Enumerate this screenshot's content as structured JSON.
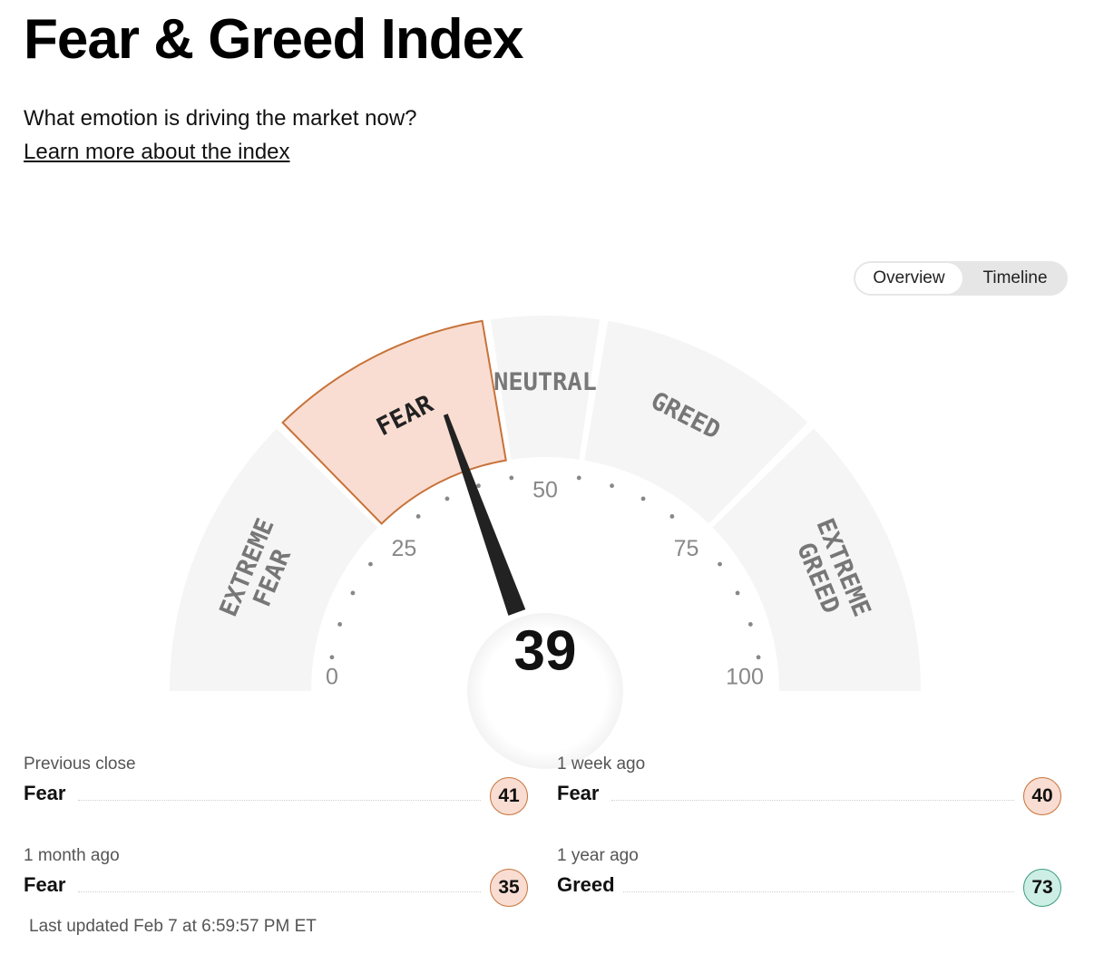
{
  "header": {
    "title": "Fear & Greed Index",
    "subtitle": "What emotion is driving the market now?",
    "learn_link": "Learn more about the index"
  },
  "view_toggle": {
    "options": [
      "Overview",
      "Timeline"
    ],
    "selected": "Overview"
  },
  "gauge": {
    "score": 39,
    "min": 0,
    "max": 100,
    "active_segment": "fear",
    "segments": [
      {
        "id": "extreme-fear",
        "lines": [
          "EXTREME",
          "FEAR"
        ],
        "from": 0,
        "to": 25
      },
      {
        "id": "fear",
        "lines": [
          "FEAR"
        ],
        "from": 25,
        "to": 45
      },
      {
        "id": "neutral",
        "lines": [
          "NEUTRAL"
        ],
        "from": 45,
        "to": 55
      },
      {
        "id": "greed",
        "lines": [
          "GREED"
        ],
        "from": 55,
        "to": 75
      },
      {
        "id": "extreme-greed",
        "lines": [
          "EXTREME",
          "GREED"
        ],
        "from": 75,
        "to": 100
      }
    ],
    "tick_labels": [
      "0",
      "25",
      "50",
      "75",
      "100"
    ],
    "colors": {
      "segment_inactive": "#f5f5f5",
      "segment_active_fill": "#f9ddd2",
      "segment_active_stroke": "#c7733a",
      "needle": "#222222",
      "dots": "#888888"
    }
  },
  "history": [
    {
      "id": "previous-close",
      "when": "Previous close",
      "rating": "Fear",
      "value": "41",
      "tone": "fear"
    },
    {
      "id": "1-week-ago",
      "when": "1 week ago",
      "rating": "Fear",
      "value": "40",
      "tone": "fear"
    },
    {
      "id": "1-month-ago",
      "when": "1 month ago",
      "rating": "Fear",
      "value": "35",
      "tone": "fear"
    },
    {
      "id": "1-year-ago",
      "when": "1 year ago",
      "rating": "Greed",
      "value": "73",
      "tone": "greed"
    }
  ],
  "last_updated": "Last updated Feb 7 at 6:59:57 PM ET"
}
